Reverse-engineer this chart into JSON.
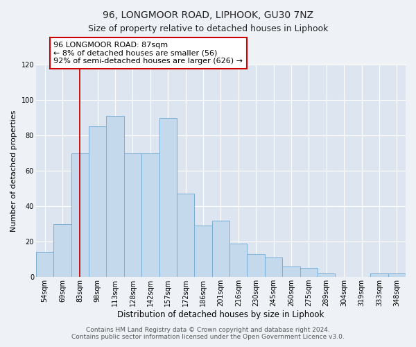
{
  "title": "96, LONGMOOR ROAD, LIPHOOK, GU30 7NZ",
  "subtitle": "Size of property relative to detached houses in Liphook",
  "xlabel": "Distribution of detached houses by size in Liphook",
  "ylabel": "Number of detached properties",
  "footer_line1": "Contains HM Land Registry data © Crown copyright and database right 2024.",
  "footer_line2": "Contains public sector information licensed under the Open Government Licence v3.0.",
  "bar_labels": [
    "54sqm",
    "69sqm",
    "83sqm",
    "98sqm",
    "113sqm",
    "128sqm",
    "142sqm",
    "157sqm",
    "172sqm",
    "186sqm",
    "201sqm",
    "216sqm",
    "230sqm",
    "245sqm",
    "260sqm",
    "275sqm",
    "289sqm",
    "304sqm",
    "319sqm",
    "333sqm",
    "348sqm"
  ],
  "bar_values": [
    14,
    30,
    70,
    85,
    91,
    70,
    70,
    90,
    47,
    29,
    32,
    19,
    13,
    11,
    6,
    5,
    2,
    0,
    0,
    2,
    2
  ],
  "bar_color": "#c5d9ed",
  "bar_edge_color": "#7aaed6",
  "vline_x_idx": 2,
  "vline_color": "#cc0000",
  "annotation_text": "96 LONGMOOR ROAD: 87sqm\n← 8% of detached houses are smaller (56)\n92% of semi-detached houses are larger (626) →",
  "annotation_box_facecolor": "#ffffff",
  "annotation_box_edgecolor": "#cc0000",
  "ylim": [
    0,
    120
  ],
  "yticks": [
    0,
    20,
    40,
    60,
    80,
    100,
    120
  ],
  "background_color": "#eef2f7",
  "plot_bg_color": "#dde6f0",
  "grid_color": "#ffffff",
  "title_fontsize": 10,
  "subtitle_fontsize": 9,
  "xlabel_fontsize": 8.5,
  "ylabel_fontsize": 8,
  "tick_fontsize": 7,
  "annotation_fontsize": 8,
  "footer_fontsize": 6.5
}
